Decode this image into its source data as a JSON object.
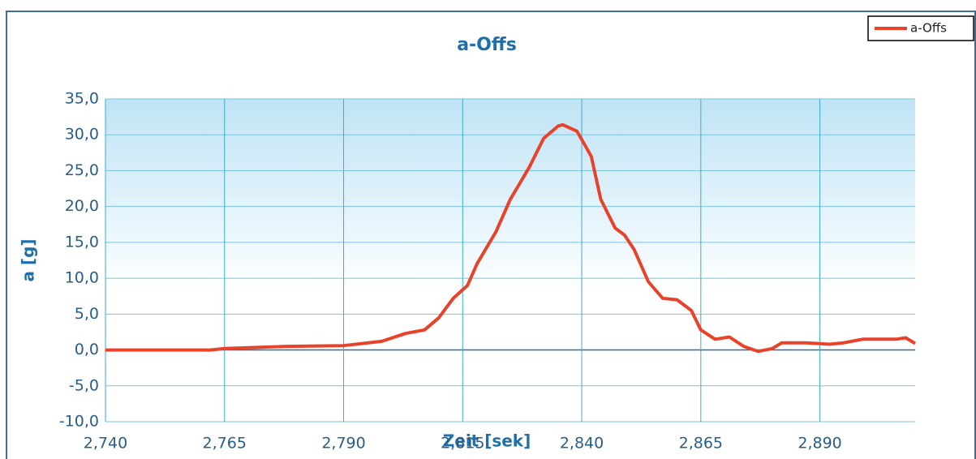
{
  "chart_data": {
    "type": "line",
    "title": "a-Offs",
    "x_label": "Zeit [sek]",
    "y_label": "a [g]",
    "x": [
      2.74,
      2.752,
      2.762,
      2.765,
      2.778,
      2.79,
      2.798,
      2.803,
      2.807,
      2.81,
      2.813,
      2.816,
      2.818,
      2.822,
      2.825,
      2.829,
      2.832,
      2.835,
      2.836,
      2.839,
      2.842,
      2.844,
      2.847,
      2.849,
      2.851,
      2.854,
      2.857,
      2.86,
      2.863,
      2.865,
      2.868,
      2.871,
      2.874,
      2.877,
      2.88,
      2.882,
      2.887,
      2.892,
      2.895,
      2.899,
      2.902,
      2.906,
      2.908,
      2.91
    ],
    "series": [
      {
        "name": "a-Offs",
        "color": "#e8432a",
        "values": [
          0.0,
          0.0,
          0.0,
          0.2,
          0.5,
          0.6,
          1.2,
          2.3,
          2.8,
          4.5,
          7.2,
          9.0,
          12.0,
          16.5,
          21.0,
          25.5,
          29.5,
          31.2,
          31.4,
          30.5,
          27.0,
          21.0,
          17.0,
          16.0,
          14.0,
          9.5,
          7.2,
          7.0,
          5.5,
          2.8,
          1.5,
          1.8,
          0.5,
          -0.2,
          0.2,
          1.0,
          1.0,
          0.8,
          1.0,
          1.5,
          1.5,
          1.5,
          1.7,
          0.9
        ]
      }
    ],
    "xlim": [
      2.74,
      2.91
    ],
    "xticks": [
      {
        "value": 2.74,
        "label": "2,740"
      },
      {
        "value": 2.765,
        "label": "2,765"
      },
      {
        "value": 2.79,
        "label": "2,790"
      },
      {
        "value": 2.815,
        "label": "2,815"
      },
      {
        "value": 2.84,
        "label": "2,840"
      },
      {
        "value": 2.865,
        "label": "2,865"
      },
      {
        "value": 2.89,
        "label": "2,890"
      }
    ],
    "ylim": [
      -10,
      35
    ],
    "yticks": [
      {
        "value": -10,
        "label": "-10,0"
      },
      {
        "value": -5,
        "label": "-5,0"
      },
      {
        "value": 0,
        "label": "0,0"
      },
      {
        "value": 5,
        "label": "5,0"
      },
      {
        "value": 10,
        "label": "10,0"
      },
      {
        "value": 15,
        "label": "15,0"
      },
      {
        "value": 20,
        "label": "20,0"
      },
      {
        "value": 25,
        "label": "25,0"
      },
      {
        "value": 30,
        "label": "30,0"
      },
      {
        "value": 35,
        "label": "35,0"
      }
    ],
    "grid": true,
    "legend": "top-right"
  }
}
